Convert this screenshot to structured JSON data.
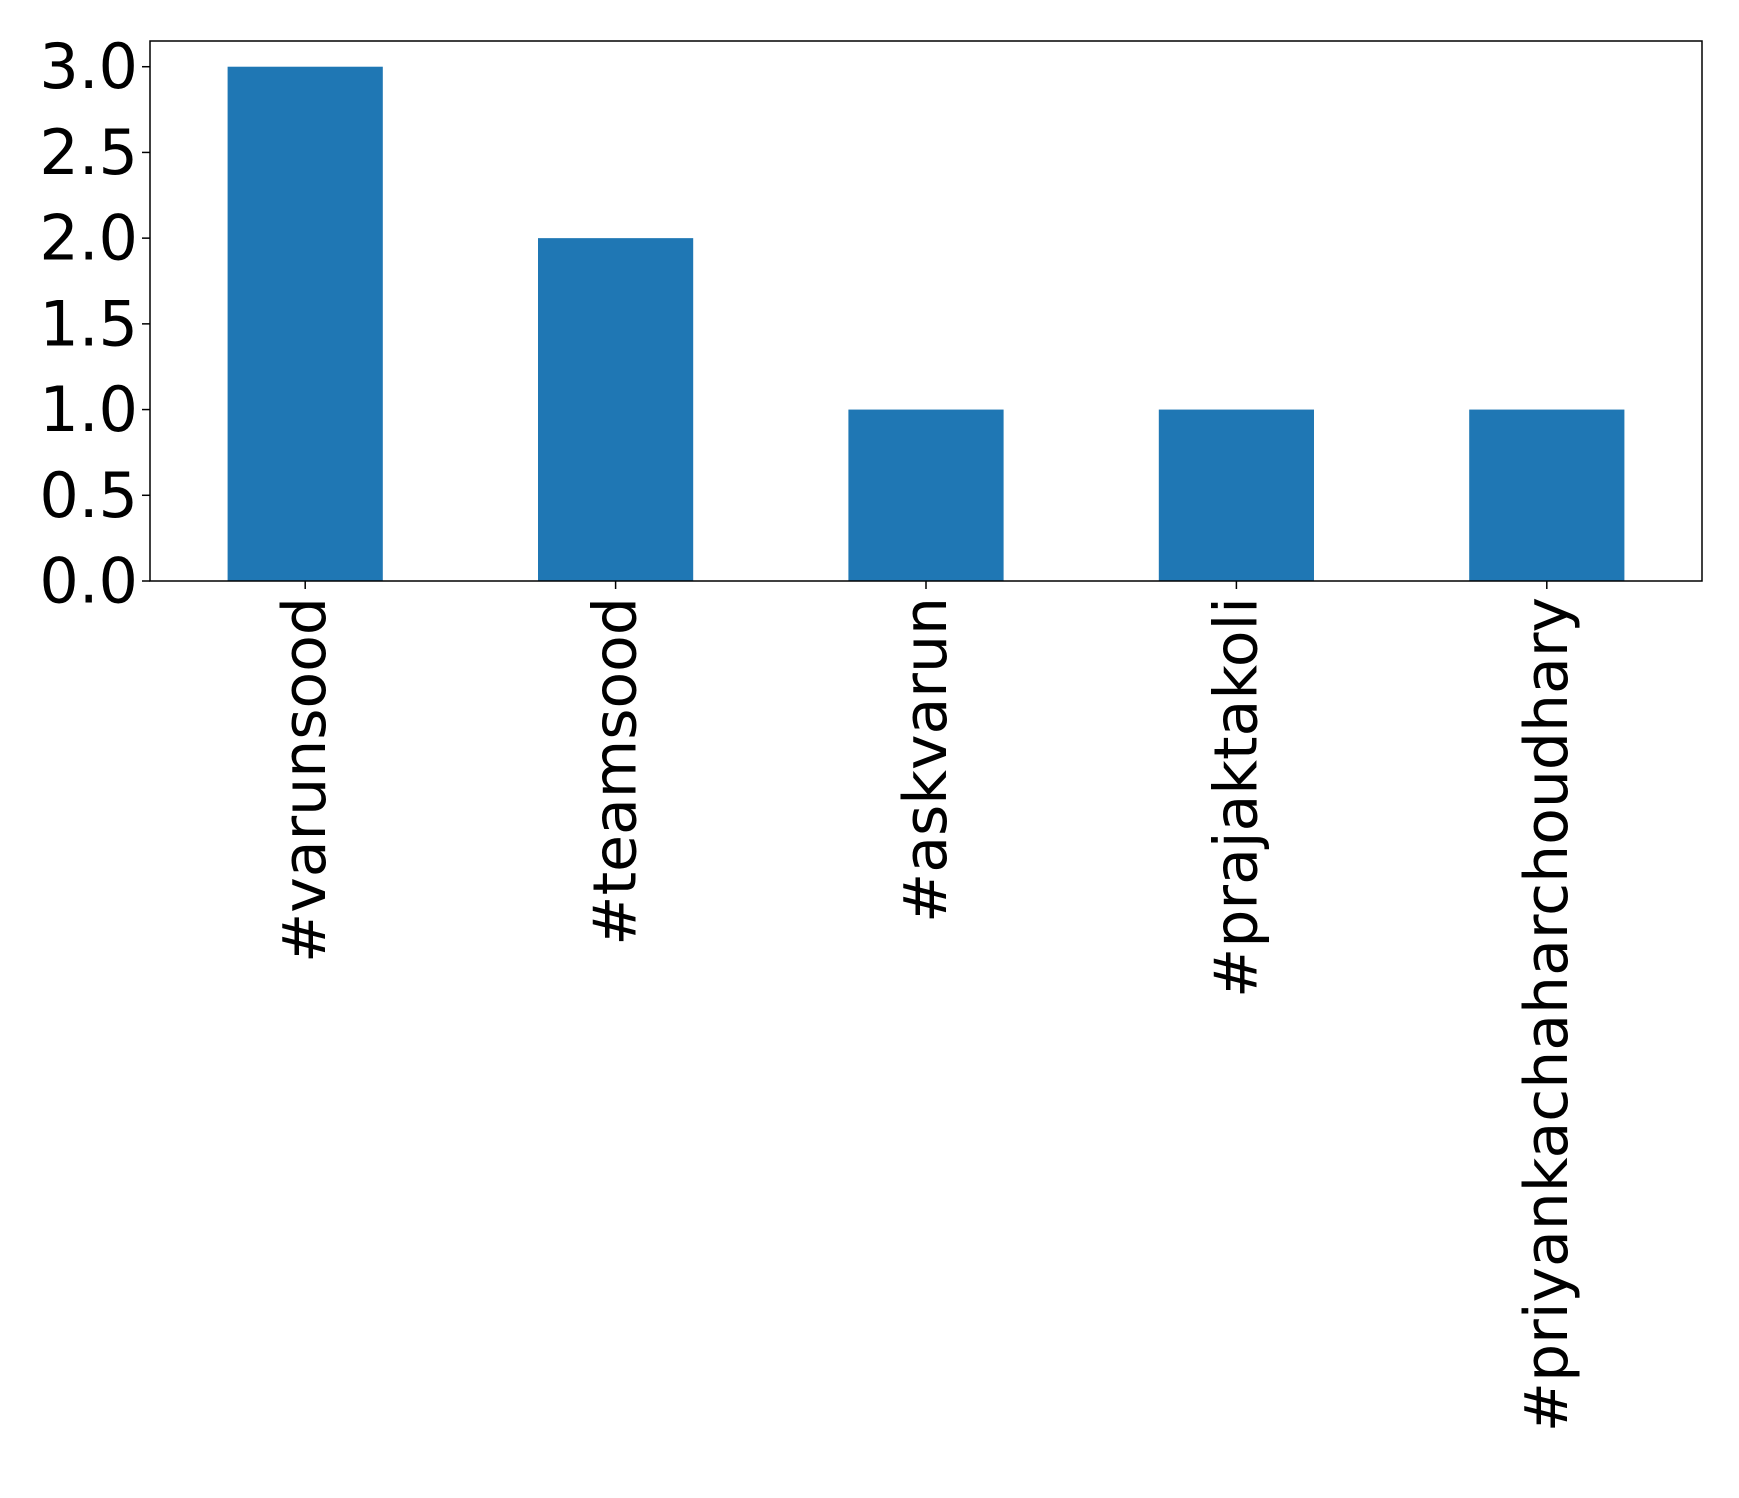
{
  "chart_data": {
    "type": "bar",
    "categories": [
      "#varunsood",
      "#teamsood",
      "#askvarun",
      "#prajaktakoli",
      "#priyankachaharchoudhary"
    ],
    "values": [
      3,
      2,
      1,
      1,
      1
    ],
    "ylim": [
      0,
      3.15
    ],
    "yticks": [
      "0.0",
      "0.5",
      "1.0",
      "1.5",
      "2.0",
      "2.5",
      "3.0"
    ],
    "title": "",
    "xlabel": "",
    "ylabel": "",
    "bar_color": "#1f77b4",
    "grid": false,
    "legend": "none"
  }
}
